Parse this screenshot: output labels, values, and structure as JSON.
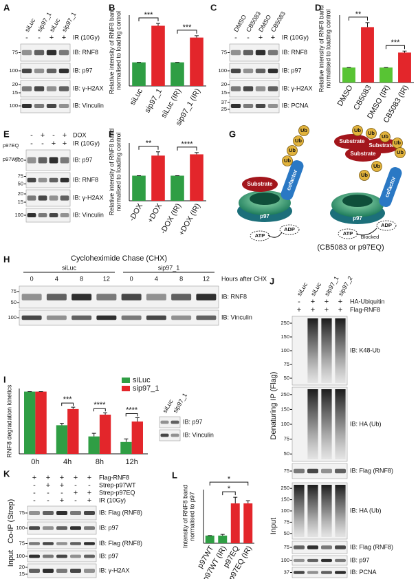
{
  "chart_data": [
    {
      "type": "bar",
      "letter": "B",
      "y_label": [
        "Relative intensity of RNF8 band",
        "normalised to loading control"
      ],
      "categories": [
        "siLuc",
        "sip97_1",
        "siLuc (IR)",
        "sip97_1 (IR)"
      ],
      "values": [
        1,
        2.55,
        1,
        2.05
      ],
      "errors": [
        0,
        0.1,
        0,
        0.08
      ],
      "colors": [
        "#2f9e44",
        "#e3262b",
        "#2f9e44",
        "#e3262b"
      ],
      "ylim": [
        0,
        3
      ],
      "annotations": [
        "***",
        "***"
      ]
    },
    {
      "type": "bar",
      "letter": "D",
      "y_label": [
        "Relative intensity of RNF8 band",
        "normalised to loading control"
      ],
      "categories": [
        "DMSO",
        "CB5083",
        "DMSO (IR)",
        "CB5083 (IR)"
      ],
      "values": [
        1,
        3.7,
        1,
        2.0
      ],
      "errors": [
        0,
        0.3,
        0,
        0.1
      ],
      "colors": [
        "#58c434",
        "#e3262b",
        "#58c434",
        "#e3262b"
      ],
      "ylim": [
        0,
        4.5
      ],
      "annotations": [
        "**",
        "***"
      ]
    },
    {
      "type": "bar",
      "letter": "F",
      "y_label": [
        "Relative intensity of RNF8 band",
        "normalised to loading control"
      ],
      "categories": [
        "-DOX",
        "+DOX",
        "-DOX (IR)",
        "+DOX (IR)"
      ],
      "values": [
        1,
        1.8,
        1,
        1.85
      ],
      "errors": [
        0,
        0.15,
        0,
        0.07
      ],
      "colors": [
        "#2f9e44",
        "#e3262b",
        "#2f9e44",
        "#e3262b"
      ],
      "ylim": [
        0,
        2.3
      ],
      "annotations": [
        "**",
        "****"
      ]
    },
    {
      "type": "bar",
      "letter": "I",
      "y_label": [
        "RNF8 degradation kinetics"
      ],
      "categories": [
        "0h",
        "4h",
        "8h",
        "12h"
      ],
      "ylim": [
        0,
        105
      ],
      "legend": "upper right",
      "series": [
        {
          "name": "siLuc",
          "color": "#2f9e44",
          "values": [
            100,
            46,
            28,
            19
          ],
          "errors": [
            0,
            3,
            5,
            5
          ]
        },
        {
          "name": "sip97_1",
          "color": "#e3262b",
          "values": [
            100,
            72,
            63,
            52
          ],
          "errors": [
            0,
            3,
            3,
            6
          ]
        }
      ],
      "annotations": [
        "***",
        "****",
        "****"
      ]
    },
    {
      "type": "bar",
      "letter": "L",
      "y_label": [
        "Intensity of RNF8 band",
        "normalised to p97"
      ],
      "categories": [
        "p97WT",
        "p97WT (IR)",
        "p97EQ",
        "p97EQ (IR)"
      ],
      "values": [
        1,
        1,
        5.2,
        5.2
      ],
      "errors": [
        0,
        0.15,
        0.8,
        0.35
      ],
      "colors": [
        "#2f9e44",
        "#2f9e44",
        "#e3262b",
        "#e3262b"
      ],
      "ylim": [
        0,
        7
      ],
      "annotations": [
        "*",
        "*"
      ]
    }
  ],
  "panels": {
    "A": {
      "letter": "A",
      "lanes": [
        "siLuc",
        "sip97_1",
        "siLuc",
        "sip97_1"
      ],
      "conditions": [
        {
          "label": "IR (10Gy)",
          "marks": [
            "-",
            "-",
            "+",
            "+"
          ]
        }
      ],
      "blots": [
        {
          "label": "IB: RNF8",
          "markers": [
            75
          ]
        },
        {
          "label": "IB: p97",
          "markers": [
            100
          ]
        },
        {
          "label": "IB: γ-H2AX",
          "markers": [
            20,
            15
          ]
        },
        {
          "label": "IB: Vinculin",
          "markers": [
            100
          ]
        }
      ]
    },
    "C": {
      "letter": "C",
      "lanes": [
        "DMSO",
        "CB5083",
        "DMSO",
        "CB5083"
      ],
      "conditions": [
        {
          "label": "IR (10Gy)",
          "marks": [
            "-",
            "-",
            "+",
            "+"
          ]
        }
      ],
      "blots": [
        {
          "label": "IB: RNF8",
          "markers": [
            75
          ]
        },
        {
          "label": "IB: p97",
          "markers": [
            100
          ]
        },
        {
          "label": "IB: γ-H2AX",
          "markers": [
            20,
            15
          ]
        },
        {
          "label": "IB: PCNA",
          "markers": [
            37,
            25
          ]
        }
      ]
    },
    "E": {
      "letter": "E",
      "side": [
        "p97EQ",
        "p97WT"
      ],
      "conditions": [
        {
          "label": "DOX",
          "marks": [
            "-",
            "+",
            "-",
            "+"
          ]
        },
        {
          "label": "IR (10Gy)",
          "marks": [
            "-",
            "-",
            "+",
            "+"
          ]
        }
      ],
      "blots": [
        {
          "label": "IB: p97",
          "markers": [
            100
          ]
        },
        {
          "label": "IB: RNF8",
          "markers": [
            75,
            50
          ]
        },
        {
          "label": "IB: γ-H2AX",
          "markers": [
            20,
            15
          ]
        },
        {
          "label": "IB: Vinculin",
          "markers": [
            100
          ]
        }
      ]
    },
    "H": {
      "letter": "H",
      "title": "Cycloheximide Chase (CHX)",
      "groups": [
        "siLuc",
        "sip97_1"
      ],
      "lanes": [
        0,
        4,
        8,
        12,
        0,
        4,
        8,
        12
      ],
      "lane_note": "Hours after CHX",
      "blots": [
        {
          "label": "IB: RNF8",
          "markers": [
            75,
            50
          ]
        },
        {
          "label": "IB: Vinculin",
          "markers": [
            100
          ]
        }
      ]
    },
    "I": {
      "lanes": [
        "siLuc",
        "sip97_1"
      ],
      "blots": [
        {
          "label": "IB: p97",
          "markers": []
        },
        {
          "label": "IB: Vinculin",
          "markers": []
        }
      ]
    },
    "J": {
      "letter": "J",
      "lanes": [
        "siLuc",
        "siLuc",
        "sip97_1",
        "sip97_2"
      ],
      "side": [
        "Denaturing IP (Flag)",
        "Input"
      ],
      "conditions": [
        {
          "label": "HA-Ubiquitin",
          "marks": [
            "-",
            "+",
            "+",
            "+"
          ]
        },
        {
          "label": "Flag-RNF8",
          "marks": [
            "+",
            "+",
            "+",
            "+"
          ]
        }
      ],
      "blots": [
        {
          "label": "IB: K48-Ub",
          "markers": [
            250,
            150,
            100,
            75,
            50
          ]
        },
        {
          "label": "IB: HA (Ub)",
          "markers": [
            250,
            150,
            100,
            75,
            50
          ]
        },
        {
          "label": "IB: Flag (RNF8)",
          "markers": [
            75
          ]
        },
        {
          "label": "IB: HA (Ub)",
          "markers": [
            250,
            150,
            100,
            75,
            50
          ]
        },
        {
          "label": "IB: Flag (RNF8)",
          "markers": [
            75
          ]
        },
        {
          "label": "IB: p97",
          "markers": [
            100
          ]
        },
        {
          "label": "IB: PCNA",
          "markers": [
            37
          ]
        }
      ]
    },
    "K": {
      "letter": "K",
      "side": [
        "Co-IP (Strep)",
        "Input"
      ],
      "conditions": [
        {
          "label": "Flag-RNF8",
          "marks": [
            "+",
            "+",
            "+",
            "+",
            "+"
          ]
        },
        {
          "label": "Strep-p97WT",
          "marks": [
            "-",
            "+",
            "+",
            "-",
            "-"
          ]
        },
        {
          "label": "Strep-p97EQ",
          "marks": [
            "-",
            "-",
            "-",
            "+",
            "+"
          ]
        },
        {
          "label": "IR (10Gy)",
          "marks": [
            "-",
            "-",
            "+",
            "-",
            "+"
          ]
        }
      ],
      "blots": [
        {
          "label": "IB: Flag (RNF8)",
          "markers": [
            75
          ]
        },
        {
          "label": "IB: p97",
          "markers": [
            100
          ]
        },
        {
          "label": "IB: Flag (RNF8)",
          "markers": [
            75
          ]
        },
        {
          "label": "IB: p97",
          "markers": [
            100
          ]
        },
        {
          "label": "IB: γ-H2AX",
          "markers": [
            20,
            15
          ]
        }
      ]
    }
  },
  "diagram": {
    "letter": "G",
    "left": {
      "substrate": "Substrate",
      "ub": [
        "Ub",
        "Ub",
        "Ub",
        "Ub"
      ],
      "cofactor": "cofactor",
      "p97": "p97",
      "adp": "ADP",
      "atp": "ATP"
    },
    "right": {
      "substrates": [
        "Substrate",
        "Substrate",
        "Substrate"
      ],
      "ub": [
        "Ub",
        "Ub",
        "Ub",
        "Ub",
        "Ub",
        "Ub",
        "Ub"
      ],
      "cofactor": "cofactor",
      "p97": "p97",
      "adp": "ADP",
      "atp": "ATP",
      "blocked": "Blocked"
    },
    "caption": "(CB5083 or p97EQ)"
  }
}
